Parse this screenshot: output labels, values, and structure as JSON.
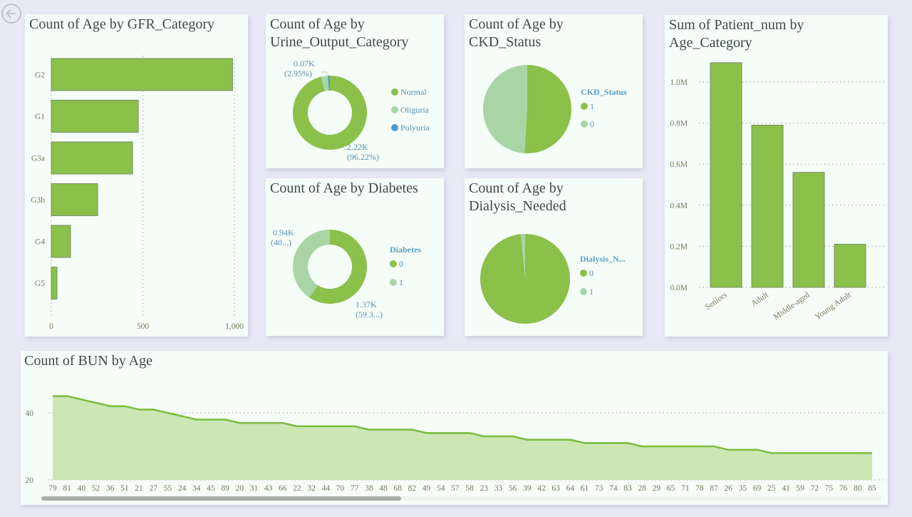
{
  "nav": {
    "back_icon": "back-arrow-icon"
  },
  "colors": {
    "primary_green": "#8bc04a",
    "light_green": "#a9d5a6",
    "blue": "#4e9ac0",
    "area_fill": "#cce6b4",
    "line": "#7cbb3f"
  },
  "chart_data": [
    {
      "id": "gfr",
      "type": "bar",
      "orientation": "horizontal",
      "title": "Count of Age by GFR_Category",
      "categories": [
        "G2",
        "G1",
        "G3a",
        "G3b",
        "G4",
        "G5"
      ],
      "values": [
        990,
        475,
        444,
        253,
        105,
        31
      ],
      "xlim": [
        0,
        1000
      ],
      "xticks": [
        0,
        500,
        1000
      ],
      "xtick_labels": [
        "0",
        "500",
        "1,000"
      ],
      "grid": true
    },
    {
      "id": "urine",
      "type": "pie",
      "donut": true,
      "title": "Count of Age by Urine_Output_Category",
      "labels": [
        "Normal",
        "Oliguria",
        "Polyuria"
      ],
      "values": [
        96.22,
        2.95,
        0.83
      ],
      "colors": [
        "#8bc04a",
        "#a9d5a6",
        "#4e9ac0"
      ],
      "data_labels": [
        {
          "line1": "2.22K",
          "line2": "(96.22%)"
        },
        {
          "line1": "0.07K",
          "line2": "(2.95%)"
        }
      ],
      "legend": "right"
    },
    {
      "id": "ckd",
      "type": "pie",
      "donut": false,
      "title": "Count of Age by CKD_Status",
      "legend_title": "CKD_Status",
      "labels": [
        "1",
        "0"
      ],
      "values": [
        51,
        49
      ],
      "colors": [
        "#8bc04a",
        "#a9d5a6"
      ],
      "legend": "right"
    },
    {
      "id": "diabetes",
      "type": "pie",
      "donut": true,
      "title": "Count of Age by Diabetes",
      "legend_title": "Diabetes",
      "labels": [
        "0",
        "1"
      ],
      "values": [
        59.3,
        40.7
      ],
      "colors": [
        "#8bc04a",
        "#a9d5a6"
      ],
      "data_labels": [
        {
          "line1": "1.37K",
          "line2": "(59.3...)"
        },
        {
          "line1": "0.94K",
          "line2": "(40...)"
        }
      ],
      "legend": "right"
    },
    {
      "id": "dialysis",
      "type": "pie",
      "donut": false,
      "title": "Count of Age by Dialysis_Needed",
      "legend_title": "Dialysis_N...",
      "labels": [
        "0",
        "1"
      ],
      "values": [
        98.5,
        1.5
      ],
      "colors": [
        "#8bc04a",
        "#a9d5a6"
      ],
      "legend": "right"
    },
    {
      "id": "agecat",
      "type": "bar",
      "orientation": "vertical",
      "title": "Sum of Patient_num by Age_Category",
      "categories": [
        "Seniors",
        "Adult",
        "Middle-aged",
        "Young Adult"
      ],
      "values": [
        1094000,
        790000,
        560000,
        210000
      ],
      "ylim": [
        0,
        1100000
      ],
      "yticks": [
        0,
        200000,
        400000,
        600000,
        800000,
        1000000
      ],
      "ytick_labels": [
        "0.0M",
        "0.2M",
        "0.4M",
        "0.6M",
        "0.8M",
        "1.0M"
      ],
      "grid": true
    },
    {
      "id": "bun",
      "type": "area",
      "title": "Count of BUN by Age",
      "x": [
        "79",
        "81",
        "40",
        "52",
        "36",
        "51",
        "21",
        "27",
        "55",
        "24",
        "34",
        "45",
        "89",
        "20",
        "31",
        "43",
        "66",
        "22",
        "32",
        "44",
        "70",
        "77",
        "38",
        "48",
        "68",
        "82",
        "49",
        "54",
        "57",
        "58",
        "23",
        "33",
        "56",
        "39",
        "42",
        "63",
        "64",
        "61",
        "73",
        "74",
        "83",
        "28",
        "29",
        "65",
        "71",
        "78",
        "87",
        "26",
        "35",
        "69",
        "25",
        "41",
        "59",
        "72",
        "75",
        "76",
        "80",
        "85"
      ],
      "values": [
        45,
        45,
        44,
        43,
        42,
        42,
        41,
        41,
        40,
        39,
        38,
        38,
        38,
        37,
        37,
        37,
        37,
        36,
        36,
        36,
        36,
        36,
        35,
        35,
        35,
        35,
        34,
        34,
        34,
        34,
        33,
        33,
        33,
        32,
        32,
        32,
        32,
        31,
        31,
        31,
        31,
        30,
        30,
        30,
        30,
        30,
        30,
        29,
        29,
        29,
        28,
        28,
        28,
        28,
        28,
        28,
        28,
        28
      ],
      "ylim": [
        20,
        46
      ],
      "yticks": [
        20,
        40
      ],
      "ytick_labels": [
        "20",
        "40"
      ],
      "grid": true
    }
  ]
}
